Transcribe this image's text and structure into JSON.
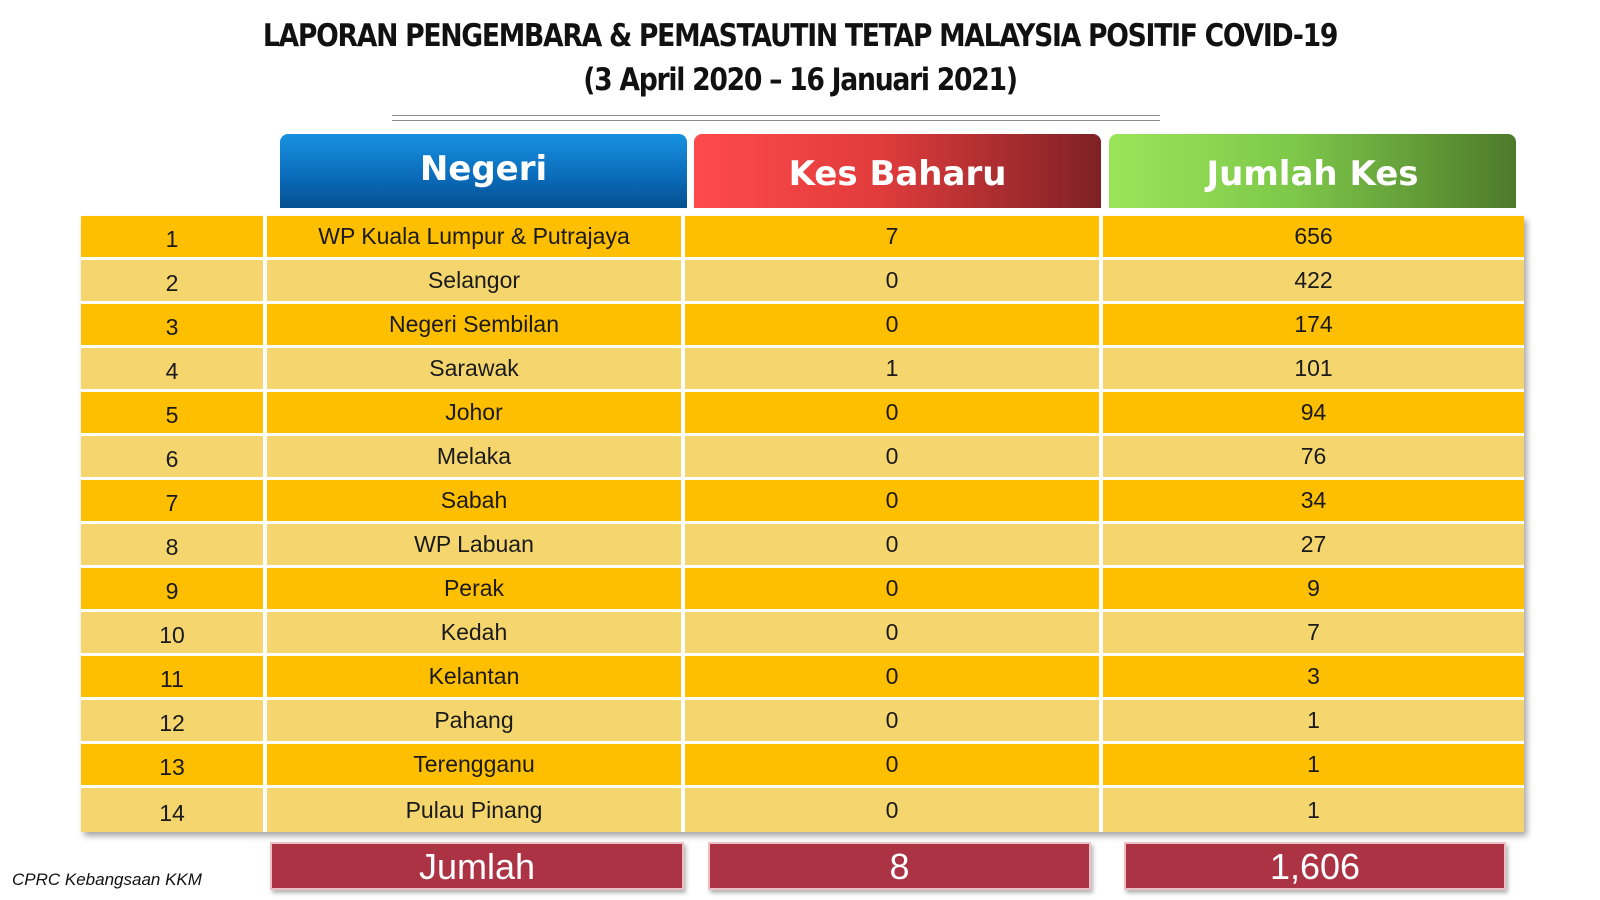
{
  "title": {
    "line1": "LAPORAN PENGEMBARA & PEMASTAUTIN TETAP MALAYSIA POSITIF COVID-19",
    "line2": "(3 April 2020 –  16 Januari 2021)"
  },
  "headers": {
    "negeri": "Negeri",
    "kes_baharu": "Kes Baharu",
    "jumlah_kes": "Jumlah Kes"
  },
  "rows": [
    {
      "no": "1",
      "negeri": "WP Kuala Lumpur & Putrajaya",
      "kes_baharu": "7",
      "jumlah_kes": "656"
    },
    {
      "no": "2",
      "negeri": "Selangor",
      "kes_baharu": "0",
      "jumlah_kes": "422"
    },
    {
      "no": "3",
      "negeri": "Negeri Sembilan",
      "kes_baharu": "0",
      "jumlah_kes": "174"
    },
    {
      "no": "4",
      "negeri": "Sarawak",
      "kes_baharu": "1",
      "jumlah_kes": "101"
    },
    {
      "no": "5",
      "negeri": "Johor",
      "kes_baharu": "0",
      "jumlah_kes": "94"
    },
    {
      "no": "6",
      "negeri": "Melaka",
      "kes_baharu": "0",
      "jumlah_kes": "76"
    },
    {
      "no": "7",
      "negeri": "Sabah",
      "kes_baharu": "0",
      "jumlah_kes": "34"
    },
    {
      "no": "8",
      "negeri": "WP Labuan",
      "kes_baharu": "0",
      "jumlah_kes": "27"
    },
    {
      "no": "9",
      "negeri": "Perak",
      "kes_baharu": "0",
      "jumlah_kes": "9"
    },
    {
      "no": "10",
      "negeri": "Kedah",
      "kes_baharu": "0",
      "jumlah_kes": "7"
    },
    {
      "no": "11",
      "negeri": "Kelantan",
      "kes_baharu": "0",
      "jumlah_kes": "3"
    },
    {
      "no": "12",
      "negeri": "Pahang",
      "kes_baharu": "0",
      "jumlah_kes": "1"
    },
    {
      "no": "13",
      "negeri": "Terengganu",
      "kes_baharu": "0",
      "jumlah_kes": "1"
    },
    {
      "no": "14",
      "negeri": "Pulau Pinang",
      "kes_baharu": "0",
      "jumlah_kes": "1"
    }
  ],
  "totals": {
    "label": "Jumlah",
    "kes_baharu": "8",
    "jumlah_kes": "1,606"
  },
  "footer": "CPRC Kebangsaan KKM",
  "colors": {
    "row_odd": "#fdbf00",
    "row_even": "#f5d66e",
    "negeri_header": "#0a6ab8",
    "kes_baharu_header": "#e13c3c",
    "jumlah_kes_header": "#7ec84a",
    "totals": "#ab3343"
  }
}
